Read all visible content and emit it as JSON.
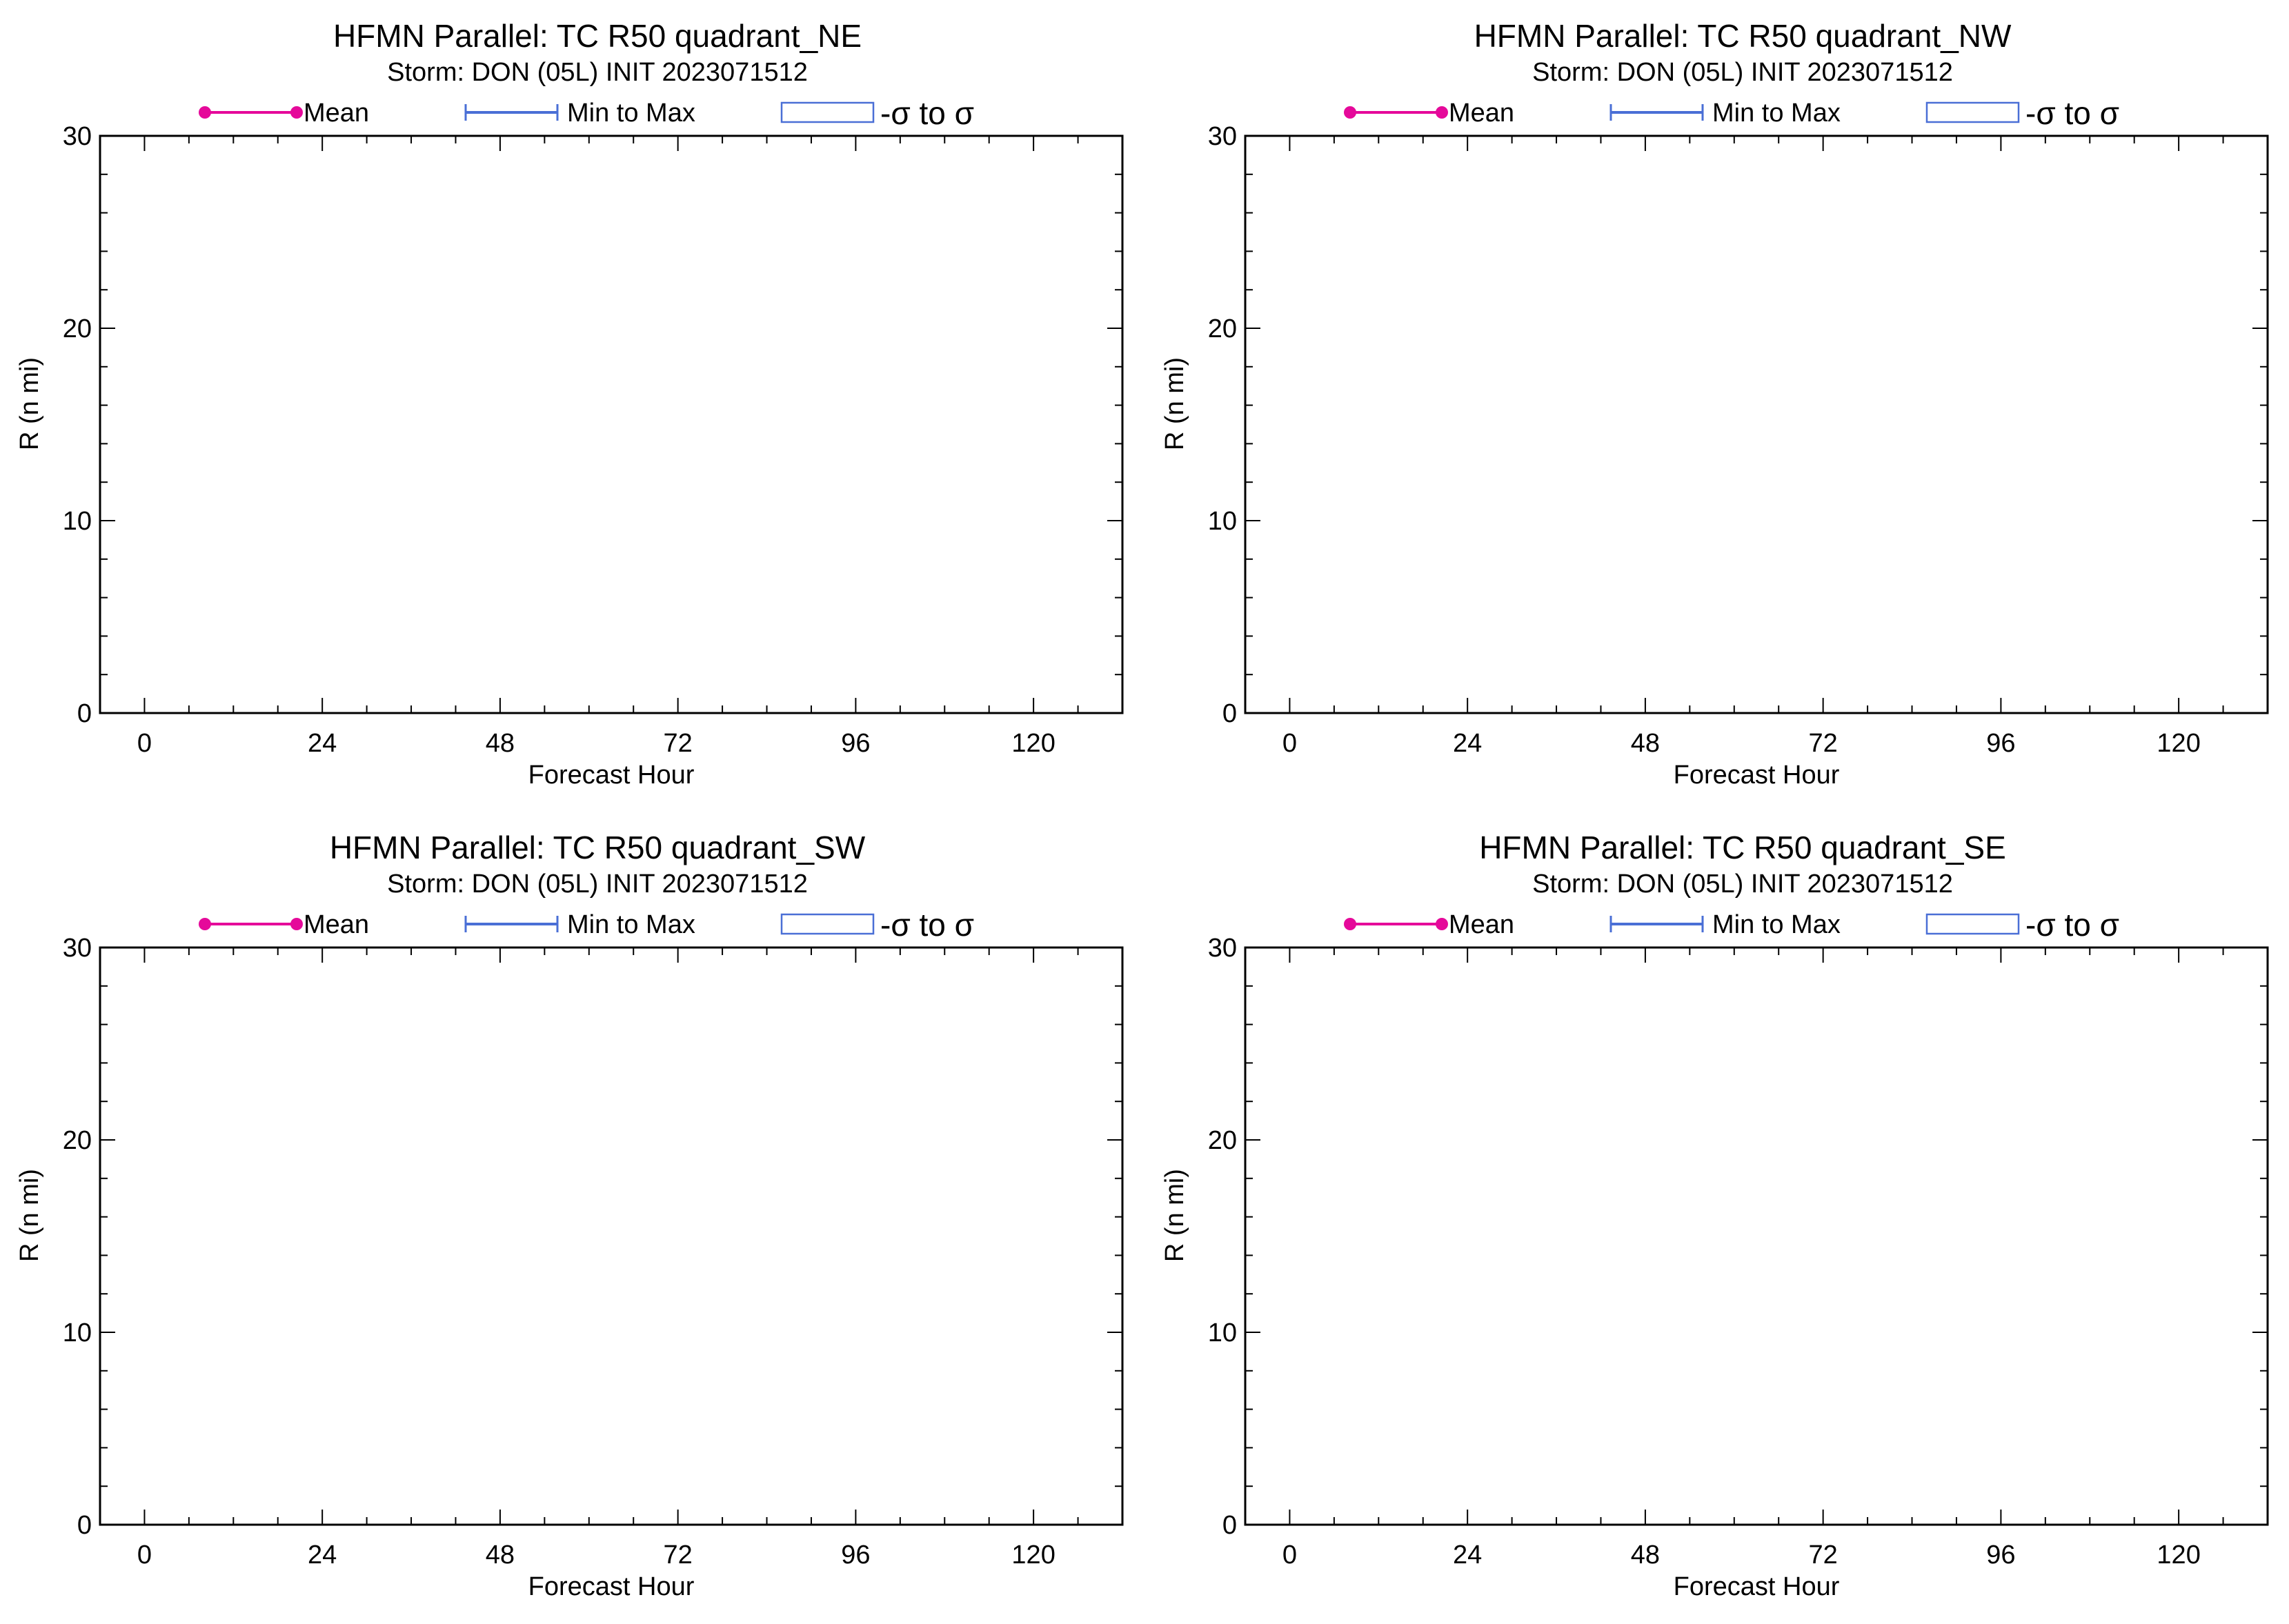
{
  "legend": {
    "mean_label": "Mean",
    "minmax_label": "Min to Max",
    "sigma_label": "-σ to σ",
    "mean_color": "#e5099a",
    "minmax_color": "#4a6fd6",
    "sigma_color": "#4a6fd6"
  },
  "chart_data": [
    {
      "type": "line",
      "title": "HFMN Parallel: TC  R50 quadrant_NE",
      "subtitle": "Storm: DON (05L) INIT 2023071512",
      "xlabel": "Forecast Hour",
      "ylabel": "R (n mi)",
      "xlim": [
        -6,
        132
      ],
      "ylim": [
        0,
        30
      ],
      "xticks": [
        0,
        24,
        48,
        72,
        96,
        120
      ],
      "yticks": [
        0,
        10,
        20,
        30
      ],
      "x": [],
      "series": []
    },
    {
      "type": "line",
      "title": "HFMN Parallel: TC  R50 quadrant_NW",
      "subtitle": "Storm: DON (05L) INIT 2023071512",
      "xlabel": "Forecast Hour",
      "ylabel": "R (n mi)",
      "xlim": [
        -6,
        132
      ],
      "ylim": [
        0,
        30
      ],
      "xticks": [
        0,
        24,
        48,
        72,
        96,
        120
      ],
      "yticks": [
        0,
        10,
        20,
        30
      ],
      "x": [],
      "series": []
    },
    {
      "type": "line",
      "title": "HFMN Parallel: TC  R50 quadrant_SW",
      "subtitle": "Storm: DON (05L) INIT 2023071512",
      "xlabel": "Forecast Hour",
      "ylabel": "R (n mi)",
      "xlim": [
        -6,
        132
      ],
      "ylim": [
        0,
        30
      ],
      "xticks": [
        0,
        24,
        48,
        72,
        96,
        120
      ],
      "yticks": [
        0,
        10,
        20,
        30
      ],
      "x": [],
      "series": []
    },
    {
      "type": "line",
      "title": "HFMN Parallel: TC  R50 quadrant_SE",
      "subtitle": "Storm: DON (05L) INIT 2023071512",
      "xlabel": "Forecast Hour",
      "ylabel": "R (n mi)",
      "xlim": [
        -6,
        132
      ],
      "ylim": [
        0,
        30
      ],
      "xticks": [
        0,
        24,
        48,
        72,
        96,
        120
      ],
      "yticks": [
        0,
        10,
        20,
        30
      ],
      "x": [],
      "series": []
    }
  ]
}
